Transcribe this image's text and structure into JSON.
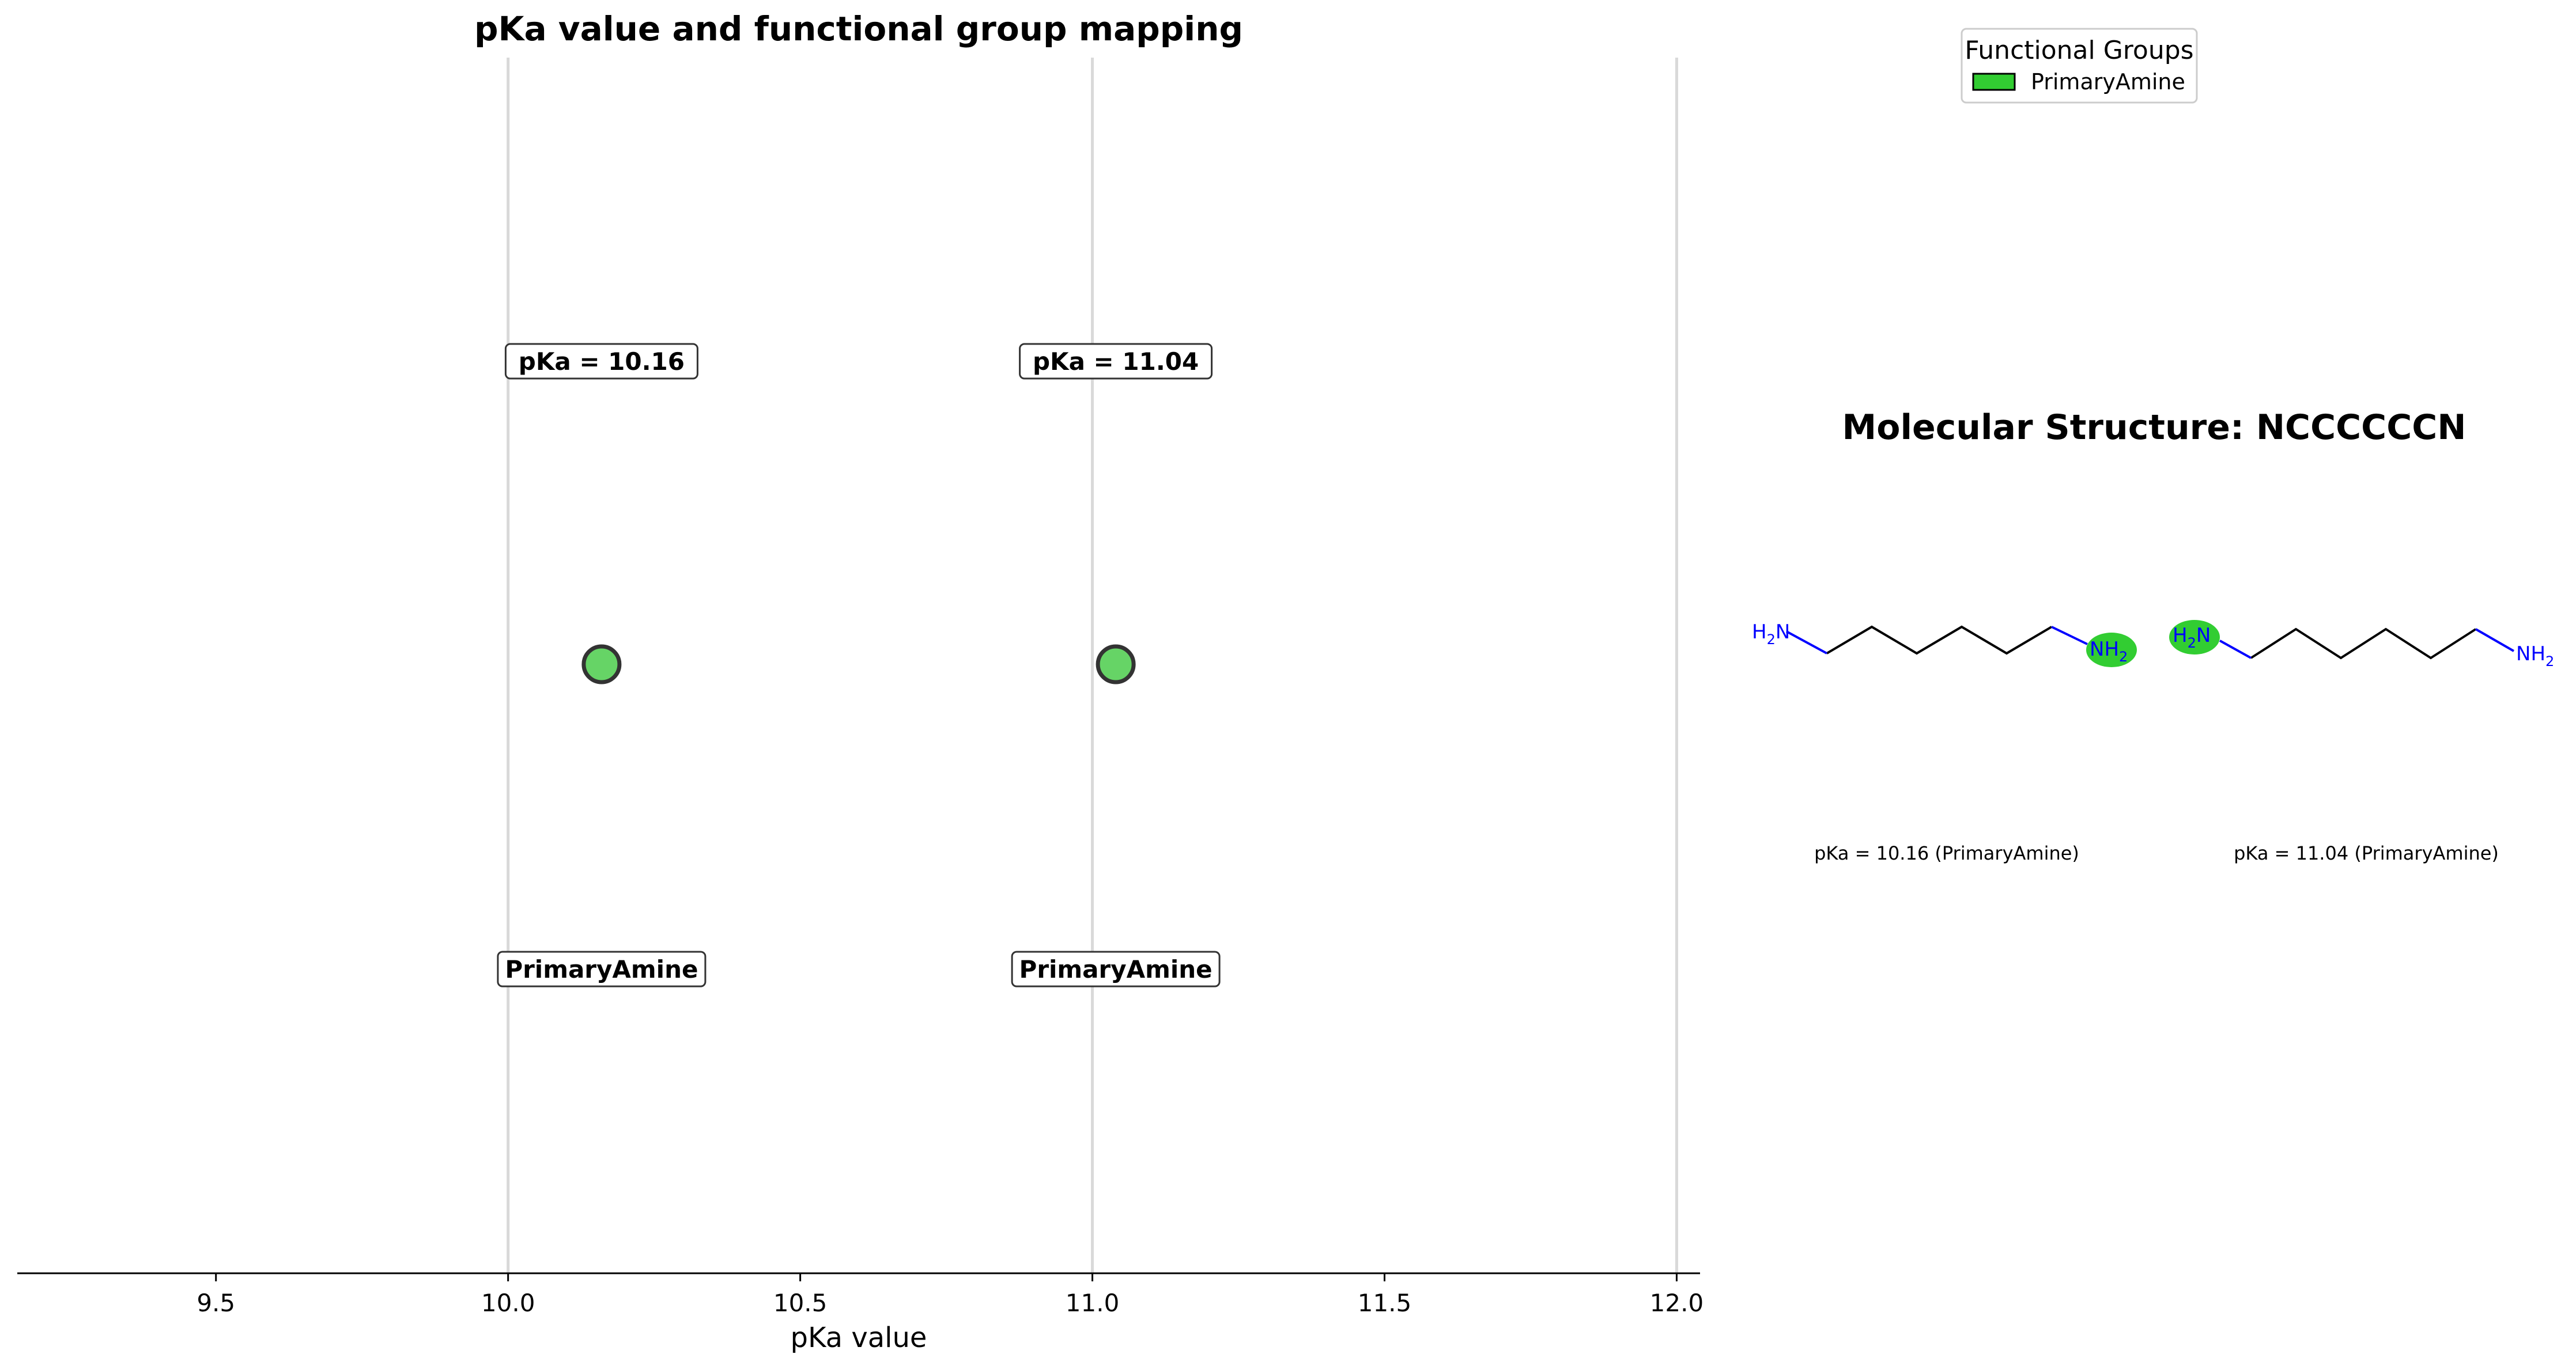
{
  "chart_data": {
    "type": "scatter",
    "title": "pKa value and functional group mapping",
    "xlabel": "pKa value",
    "ylabel": "",
    "xlim": [
      9.16,
      12.04
    ],
    "grid": "vertical lines at 10.0, 11.0, 12.0",
    "xticks": [
      "9.5",
      "10.0",
      "10.5",
      "11.0",
      "11.5",
      "12.0"
    ],
    "xtick_values": [
      9.5,
      10.0,
      10.5,
      11.0,
      11.5,
      12.0
    ],
    "points": [
      {
        "x": 10.16,
        "label": "pKa = 10.16",
        "group": "PrimaryAmine"
      },
      {
        "x": 11.04,
        "label": "pKa = 11.04",
        "group": "PrimaryAmine"
      }
    ],
    "legend": {
      "title": "Functional Groups",
      "placement": "top-right",
      "entries": [
        {
          "name": "PrimaryAmine",
          "color": "#32cd32"
        }
      ]
    }
  },
  "molecule": {
    "title": "Molecular Structure: NCCCCCCN",
    "atoms": {
      "h": "H",
      "sub": "2",
      "n": "N"
    },
    "captions": [
      "pKa = 10.16 (PrimaryAmine)",
      "pKa = 11.04 (PrimaryAmine)"
    ]
  },
  "colors": {
    "point_fill": "#66d466",
    "point_edge": "#333333",
    "highlight": "#32cd32",
    "nitrogen": "#0000ff",
    "gridline": "#d9d9d9"
  }
}
